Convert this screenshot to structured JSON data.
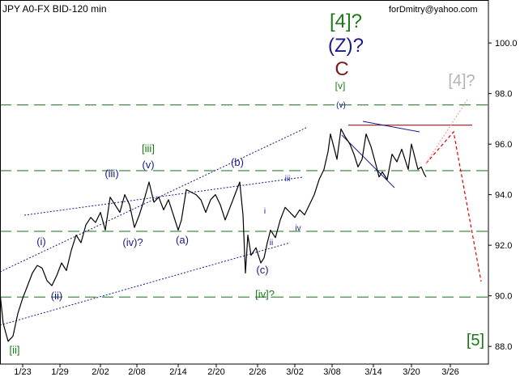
{
  "chart_data": {
    "type": "candlestick-line",
    "title": "JPY A0-FX BID-120 min",
    "watermark": "forDmitry@yahoo.com",
    "x_ticks": [
      "1/23",
      "1/29",
      "2/02",
      "2/08",
      "2/14",
      "2/20",
      "2/26",
      "3/02",
      "3/08",
      "3/14",
      "3/20",
      "3/26"
    ],
    "y_ticks": [
      "100.0",
      "98.0",
      "96.0",
      "94.0",
      "92.0",
      "90.0",
      "88.0"
    ],
    "ylim": [
      87.3,
      101.7
    ],
    "grid": false,
    "price_path": [
      [
        0,
        90.1
      ],
      [
        4,
        88.9
      ],
      [
        10,
        88.2
      ],
      [
        16,
        88.4
      ],
      [
        22,
        89.3
      ],
      [
        28,
        89.9
      ],
      [
        34,
        90.4
      ],
      [
        40,
        90.9
      ],
      [
        46,
        91.2
      ],
      [
        52,
        91.1
      ],
      [
        58,
        90.6
      ],
      [
        64,
        90.4
      ],
      [
        70,
        90.8
      ],
      [
        76,
        91.3
      ],
      [
        82,
        91.0
      ],
      [
        88,
        91.8
      ],
      [
        94,
        92.4
      ],
      [
        100,
        92.1
      ],
      [
        106,
        92.8
      ],
      [
        112,
        93.1
      ],
      [
        118,
        92.9
      ],
      [
        124,
        93.3
      ],
      [
        130,
        92.6
      ],
      [
        136,
        93.9
      ],
      [
        142,
        93.6
      ],
      [
        148,
        93.3
      ],
      [
        154,
        94.0
      ],
      [
        160,
        93.6
      ],
      [
        166,
        92.7
      ],
      [
        172,
        93.2
      ],
      [
        178,
        93.8
      ],
      [
        184,
        94.5
      ],
      [
        190,
        93.7
      ],
      [
        196,
        93.9
      ],
      [
        202,
        93.4
      ],
      [
        208,
        93.8
      ],
      [
        214,
        93.2
      ],
      [
        220,
        92.6
      ],
      [
        224,
        93.0
      ],
      [
        230,
        94.2
      ],
      [
        236,
        94.1
      ],
      [
        242,
        94.0
      ],
      [
        248,
        93.8
      ],
      [
        254,
        93.3
      ],
      [
        260,
        93.8
      ],
      [
        266,
        94.0
      ],
      [
        272,
        93.6
      ],
      [
        278,
        93.0
      ],
      [
        284,
        93.5
      ],
      [
        290,
        94.0
      ],
      [
        296,
        94.5
      ],
      [
        300,
        93.2
      ],
      [
        303,
        90.9
      ],
      [
        306,
        92.4
      ],
      [
        310,
        91.6
      ],
      [
        316,
        91.9
      ],
      [
        322,
        91.3
      ],
      [
        326,
        91.5
      ],
      [
        330,
        92.1
      ],
      [
        334,
        92.6
      ],
      [
        340,
        92.3
      ],
      [
        346,
        93.0
      ],
      [
        352,
        93.5
      ],
      [
        358,
        93.3
      ],
      [
        364,
        93.1
      ],
      [
        370,
        93.4
      ],
      [
        376,
        93.2
      ],
      [
        382,
        93.6
      ],
      [
        388,
        94.0
      ],
      [
        394,
        94.6
      ],
      [
        400,
        95.0
      ],
      [
        405,
        95.7
      ],
      [
        408,
        96.4
      ],
      [
        412,
        95.9
      ],
      [
        416,
        95.4
      ],
      [
        421,
        96.6
      ],
      [
        426,
        96.3
      ],
      [
        432,
        96.0
      ],
      [
        437,
        95.6
      ],
      [
        442,
        95.1
      ],
      [
        447,
        95.4
      ],
      [
        452,
        96.4
      ],
      [
        458,
        95.9
      ],
      [
        464,
        95.2
      ],
      [
        468,
        94.7
      ],
      [
        472,
        94.9
      ],
      [
        478,
        94.6
      ],
      [
        484,
        95.6
      ],
      [
        490,
        95.3
      ],
      [
        496,
        95.8
      ],
      [
        500,
        95.4
      ],
      [
        504,
        95.0
      ],
      [
        508,
        96.0
      ],
      [
        512,
        95.5
      ],
      [
        516,
        95.0
      ],
      [
        520,
        95.1
      ],
      [
        524,
        94.8
      ],
      [
        526,
        94.7
      ]
    ],
    "wave_labels": [
      {
        "text": "[4]?",
        "color": "#1a7a1a",
        "size": 24
      },
      {
        "text": "(Z)?",
        "color": "#1a1a8a",
        "size": 24
      },
      {
        "text": "C",
        "color": "#7a1a1a",
        "size": 24
      },
      {
        "text": "[v]",
        "color": "#1a7a1a",
        "size": 12
      },
      {
        "text": "(v)",
        "color": "#1a1a8a",
        "size": 10
      },
      {
        "text": "[4]?",
        "color": "#b3b3b3",
        "size": 20
      },
      {
        "text": "[iii]",
        "color": "#1a7a1a",
        "size": 13
      },
      {
        "text": "(v)",
        "color": "#1a1a8a",
        "size": 13
      },
      {
        "text": "(iii)",
        "color": "#1a1a8a",
        "size": 13
      },
      {
        "text": "(b)",
        "color": "#1a1a8a",
        "size": 13
      },
      {
        "text": "iii",
        "color": "#1a1a8a",
        "size": 10
      },
      {
        "text": "(i)",
        "color": "#1a1a8a",
        "size": 13
      },
      {
        "text": "i",
        "color": "#1a1a8a",
        "size": 10
      },
      {
        "text": "(iv)?",
        "color": "#1a1a8a",
        "size": 13
      },
      {
        "text": "(a)",
        "color": "#1a1a8a",
        "size": 13
      },
      {
        "text": "iv",
        "color": "#1a1a8a",
        "size": 10
      },
      {
        "text": "ii",
        "color": "#1a1a8a",
        "size": 10
      },
      {
        "text": "(ii)",
        "color": "#1a1a8a",
        "size": 13
      },
      {
        "text": "(c)",
        "color": "#1a1a8a",
        "size": 13
      },
      {
        "text": "[iv]?",
        "color": "#1a7a1a",
        "size": 13
      },
      {
        "text": "[ii]",
        "color": "#1a7a1a",
        "size": 13
      },
      {
        "text": "[5]",
        "color": "#1a7a1a",
        "size": 20
      }
    ],
    "horizontal_levels": [
      {
        "y": 97.55,
        "style": "dashed",
        "color": "#2e7d32"
      },
      {
        "y": 94.95,
        "style": "dashed",
        "color": "#2e7d32"
      },
      {
        "y": 92.55,
        "style": "dashed",
        "color": "#2e7d32"
      },
      {
        "y": 89.95,
        "style": "dashed",
        "color": "#2e7d32"
      },
      {
        "y": 96.75,
        "style": "solid",
        "color": "#8b1a1a"
      }
    ]
  }
}
